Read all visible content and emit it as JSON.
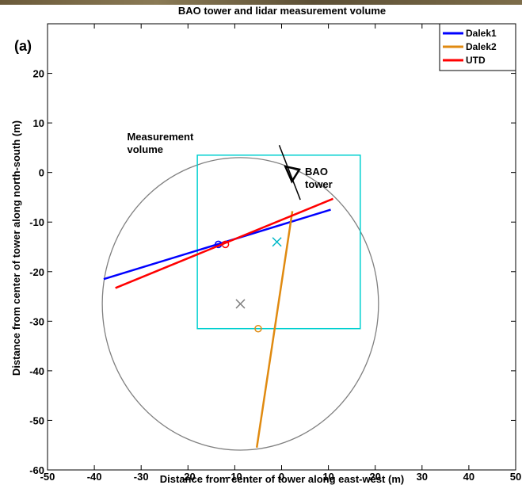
{
  "chart_data": {
    "type": "line",
    "title": "BAO  tower and  lidar measurement volume",
    "panel_label": "(a)",
    "xlabel": "Distance from center of tower along  east-west (m)",
    "ylabel": "Distance from center of tower along  north-south (m)",
    "xlim": [
      -50,
      50
    ],
    "ylim": [
      -60,
      30
    ],
    "xticks": [
      -50,
      -40,
      -30,
      -20,
      -10,
      0,
      10,
      20,
      30,
      40,
      50
    ],
    "yticks": [
      -60,
      -50,
      -40,
      -30,
      -20,
      -10,
      0,
      10,
      20
    ],
    "grid": false,
    "legend_position": "top-right",
    "series": [
      {
        "name": "Dalek1",
        "color": "#0000ff",
        "x": [
          -38.0,
          10.5
        ],
        "y": [
          -21.5,
          -7.5
        ],
        "marker": {
          "x": -13.5,
          "y": -14.5,
          "shape": "o"
        }
      },
      {
        "name": "Dalek2",
        "color": "#e08a10",
        "x": [
          -5.3,
          2.3
        ],
        "y": [
          -55.5,
          -7.8
        ],
        "marker": {
          "x": -5.0,
          "y": -31.5,
          "shape": "o"
        }
      },
      {
        "name": "UTD",
        "color": "#ff0000",
        "x": [
          -35.5,
          11.0
        ],
        "y": [
          -23.3,
          -5.3
        ],
        "marker": {
          "x": -12.0,
          "y": -14.5,
          "shape": "o"
        }
      }
    ],
    "measurement_circle": {
      "cx": -8.8,
      "cy": -26.5,
      "r": 29.5,
      "color": "#808080"
    },
    "measurement_box": {
      "x1": -18.0,
      "x2": 16.8,
      "y1": -31.5,
      "y2": 3.5,
      "color": "#00d0d0"
    },
    "center_marks": [
      {
        "x": -1.0,
        "y": -14.0,
        "color": "#00b8c8"
      },
      {
        "x": -8.8,
        "y": -26.5,
        "color": "#808080"
      }
    ],
    "tower_boom": {
      "x1": -0.5,
      "y1": 5.5,
      "x2": 4.0,
      "y2": -5.5
    },
    "tower_triangle": [
      {
        "x": 0.8,
        "y": 1.2
      },
      {
        "x": 3.8,
        "y": 0.6
      },
      {
        "x": 2.2,
        "y": -1.8
      }
    ],
    "annotations": [
      {
        "id": "measurement",
        "lines": [
          "Measurement",
          "volume"
        ],
        "x": -33.0,
        "y": 6.5
      },
      {
        "id": "tower",
        "lines": [
          "BAO",
          "tower"
        ],
        "x": 5.0,
        "y": -0.5
      }
    ]
  }
}
